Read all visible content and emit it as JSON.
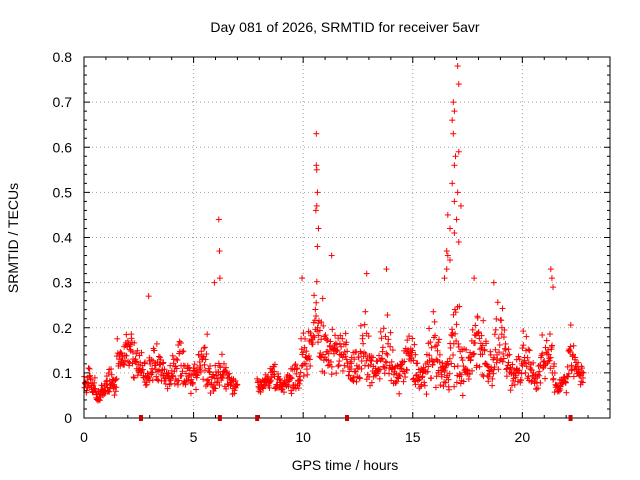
{
  "chart_data": {
    "type": "scatter",
    "title": "Day 081 of 2026, SRMTID for receiver 5avr",
    "xlabel": "GPS time / hours",
    "ylabel": "SRMTID / TECUs",
    "xlim": [
      0,
      24
    ],
    "ylim": [
      0,
      0.8
    ],
    "grid": true,
    "marker": "+",
    "color": "#ff0000",
    "xticks": [
      "0",
      "5",
      "10",
      "15",
      "20"
    ],
    "yticks": [
      "0",
      "0.1",
      "0.2",
      "0.3",
      "0.4",
      "0.5",
      "0.6",
      "0.7",
      "0.8"
    ],
    "data_gaps_at_hours": [
      2.6,
      6.2,
      7.9,
      12.0,
      22.2
    ],
    "segments": [
      {
        "x_start": 0.0,
        "x_end": 1.5,
        "y_min": 0.03,
        "y_max": 0.13,
        "n": 90
      },
      {
        "x_start": 1.5,
        "x_end": 2.2,
        "y_min": 0.1,
        "y_max": 0.24,
        "n": 40
      },
      {
        "x_start": 2.2,
        "x_end": 4.2,
        "y_min": 0.06,
        "y_max": 0.2,
        "n": 110
      },
      {
        "x_start": 4.2,
        "x_end": 6.3,
        "y_min": 0.05,
        "y_max": 0.2,
        "n": 110
      },
      {
        "x_start": 6.3,
        "x_end": 7.0,
        "y_min": 0.04,
        "y_max": 0.15,
        "n": 35
      },
      {
        "x_start": 7.9,
        "x_end": 9.9,
        "y_min": 0.05,
        "y_max": 0.14,
        "n": 110
      },
      {
        "x_start": 9.9,
        "x_end": 11.5,
        "y_min": 0.08,
        "y_max": 0.33,
        "n": 90
      },
      {
        "x_start": 11.5,
        "x_end": 14.0,
        "y_min": 0.06,
        "y_max": 0.25,
        "n": 130
      },
      {
        "x_start": 14.0,
        "x_end": 15.9,
        "y_min": 0.05,
        "y_max": 0.22,
        "n": 100
      },
      {
        "x_start": 15.9,
        "x_end": 17.3,
        "y_min": 0.03,
        "y_max": 0.3,
        "n": 80
      },
      {
        "x_start": 17.3,
        "x_end": 19.2,
        "y_min": 0.06,
        "y_max": 0.28,
        "n": 100
      },
      {
        "x_start": 19.2,
        "x_end": 21.5,
        "y_min": 0.05,
        "y_max": 0.22,
        "n": 120
      },
      {
        "x_start": 21.5,
        "x_end": 22.1,
        "y_min": 0.05,
        "y_max": 0.15,
        "n": 30
      },
      {
        "x_start": 22.1,
        "x_end": 22.8,
        "y_min": 0.06,
        "y_max": 0.22,
        "n": 40
      }
    ],
    "peaks": [
      {
        "x": 6.15,
        "y": 0.44
      },
      {
        "x": 6.18,
        "y": 0.37
      },
      {
        "x": 6.2,
        "y": 0.31
      },
      {
        "x": 5.95,
        "y": 0.3
      },
      {
        "x": 10.6,
        "y": 0.63
      },
      {
        "x": 10.6,
        "y": 0.56
      },
      {
        "x": 10.62,
        "y": 0.55
      },
      {
        "x": 10.65,
        "y": 0.5
      },
      {
        "x": 10.62,
        "y": 0.47
      },
      {
        "x": 10.58,
        "y": 0.46
      },
      {
        "x": 10.7,
        "y": 0.42
      },
      {
        "x": 10.65,
        "y": 0.38
      },
      {
        "x": 11.3,
        "y": 0.36
      },
      {
        "x": 13.8,
        "y": 0.33
      },
      {
        "x": 12.9,
        "y": 0.32
      },
      {
        "x": 17.05,
        "y": 0.78
      },
      {
        "x": 17.1,
        "y": 0.74
      },
      {
        "x": 16.85,
        "y": 0.7
      },
      {
        "x": 16.9,
        "y": 0.68
      },
      {
        "x": 16.8,
        "y": 0.66
      },
      {
        "x": 16.85,
        "y": 0.63
      },
      {
        "x": 17.1,
        "y": 0.59
      },
      {
        "x": 16.95,
        "y": 0.58
      },
      {
        "x": 16.9,
        "y": 0.56
      },
      {
        "x": 16.8,
        "y": 0.52
      },
      {
        "x": 17.05,
        "y": 0.5
      },
      {
        "x": 16.9,
        "y": 0.48
      },
      {
        "x": 17.2,
        "y": 0.47
      },
      {
        "x": 16.6,
        "y": 0.45
      },
      {
        "x": 17.0,
        "y": 0.44
      },
      {
        "x": 16.7,
        "y": 0.42
      },
      {
        "x": 16.9,
        "y": 0.41
      },
      {
        "x": 17.1,
        "y": 0.39
      },
      {
        "x": 16.55,
        "y": 0.37
      },
      {
        "x": 16.6,
        "y": 0.36
      },
      {
        "x": 16.7,
        "y": 0.35
      },
      {
        "x": 16.55,
        "y": 0.33
      },
      {
        "x": 16.45,
        "y": 0.31
      },
      {
        "x": 2.95,
        "y": 0.27
      },
      {
        "x": 21.3,
        "y": 0.33
      },
      {
        "x": 21.35,
        "y": 0.31
      },
      {
        "x": 21.4,
        "y": 0.29
      },
      {
        "x": 18.7,
        "y": 0.3
      },
      {
        "x": 17.8,
        "y": 0.31
      },
      {
        "x": 9.95,
        "y": 0.31
      }
    ]
  }
}
